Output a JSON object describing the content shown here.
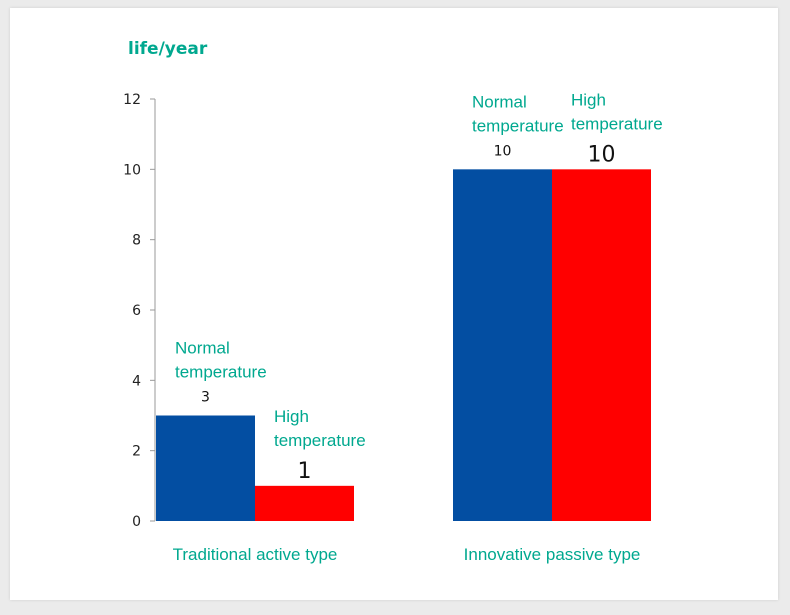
{
  "chart_data": {
    "type": "bar",
    "ylabel": "life/year",
    "ylim": [
      0,
      12
    ],
    "yticks": [
      "0",
      "2",
      "4",
      "6",
      "8",
      "10",
      "12"
    ],
    "categories": [
      "Traditional active type",
      "Innovative passive type"
    ],
    "series": [
      {
        "name_lines": [
          "Normal",
          "temperature"
        ],
        "values": [
          3,
          10
        ],
        "value_labels": [
          "3",
          "10"
        ],
        "color": "#034ea2"
      },
      {
        "name_lines": [
          "High",
          "temperature"
        ],
        "values": [
          1,
          10
        ],
        "value_labels": [
          "1",
          "10"
        ],
        "color": "#ff0000"
      }
    ],
    "label_color": "#00a88f",
    "grid": false
  }
}
